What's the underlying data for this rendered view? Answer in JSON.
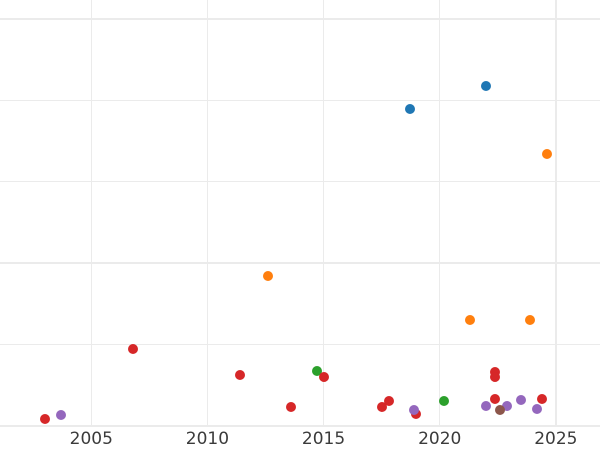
{
  "chart_data": {
    "type": "scatter",
    "title": "",
    "xlabel": "",
    "ylabel": "",
    "legend": "none",
    "grid": true,
    "background": "#ffffff",
    "gridline_color": "#ebebeb",
    "tick_label_color": "#3b3b3b",
    "axes": {
      "x": {
        "min": 2001.07,
        "max": 2026.9,
        "ticks": [
          2005,
          2010,
          2015,
          2020,
          2025
        ]
      },
      "y": {
        "min": -0.295,
        "max": 5.233,
        "gridline_values": [
          0,
          1,
          2,
          3,
          4,
          5
        ]
      }
    },
    "palette": {
      "blue": "#1f77b4",
      "orange": "#ff7f0e",
      "green": "#2ca02c",
      "red": "#d62728",
      "purple": "#9467bd",
      "brown": "#8c564b"
    },
    "series": [
      {
        "name": "blue",
        "color": "blue",
        "points": [
          {
            "x": 2018.7,
            "y": 3.89
          },
          {
            "x": 2022.0,
            "y": 4.18
          }
        ]
      },
      {
        "name": "orange",
        "color": "orange",
        "points": [
          {
            "x": 2012.6,
            "y": 1.84
          },
          {
            "x": 2021.3,
            "y": 1.3
          },
          {
            "x": 2023.9,
            "y": 1.3
          },
          {
            "x": 2024.6,
            "y": 3.34
          }
        ]
      },
      {
        "name": "green",
        "color": "green",
        "points": [
          {
            "x": 2014.7,
            "y": 0.68
          },
          {
            "x": 2020.2,
            "y": 0.31
          }
        ]
      },
      {
        "name": "red",
        "color": "red",
        "points": [
          {
            "x": 2003.0,
            "y": 0.08
          },
          {
            "x": 2006.8,
            "y": 0.95
          },
          {
            "x": 2011.4,
            "y": 0.63
          },
          {
            "x": 2013.6,
            "y": 0.23
          },
          {
            "x": 2015.0,
            "y": 0.6
          },
          {
            "x": 2017.5,
            "y": 0.23
          },
          {
            "x": 2017.8,
            "y": 0.31
          },
          {
            "x": 2019.0,
            "y": 0.15
          },
          {
            "x": 2022.4,
            "y": 0.66
          },
          {
            "x": 2022.4,
            "y": 0.6
          },
          {
            "x": 2022.4,
            "y": 0.33
          },
          {
            "x": 2024.4,
            "y": 0.33
          }
        ]
      },
      {
        "name": "purple",
        "color": "purple",
        "points": [
          {
            "x": 2003.7,
            "y": 0.14
          },
          {
            "x": 2018.9,
            "y": 0.2
          },
          {
            "x": 2022.0,
            "y": 0.25
          },
          {
            "x": 2022.9,
            "y": 0.25
          },
          {
            "x": 2023.5,
            "y": 0.32
          },
          {
            "x": 2024.2,
            "y": 0.21
          }
        ]
      },
      {
        "name": "brown",
        "color": "brown",
        "points": [
          {
            "x": 2022.6,
            "y": 0.2
          }
        ]
      }
    ]
  }
}
